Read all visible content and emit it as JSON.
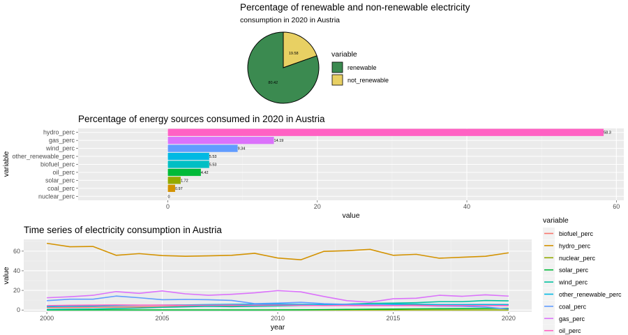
{
  "chart_data": [
    {
      "type": "pie",
      "title": "Percentage of renewable and non-renewable electricity",
      "subtitle": "consumption in 2020 in Austria",
      "legend_title": "variable",
      "legend_position": "right",
      "slices": [
        {
          "name": "renewable",
          "value": 80.42,
          "label": "80.42",
          "color": "#3b8a50"
        },
        {
          "name": "not_renewable",
          "value": 19.58,
          "label": "19.58",
          "color": "#e8d063"
        }
      ]
    },
    {
      "type": "bar",
      "orientation": "horizontal",
      "title": "Percentage of energy sources consumed in 2020 in Austria",
      "xlabel": "value",
      "ylabel": "variable",
      "xlim": [
        -12,
        61
      ],
      "xticks": [
        0,
        20,
        40,
        60
      ],
      "grid": true,
      "categories": [
        "hydro_perc",
        "gas_perc",
        "wind_perc",
        "other_renewable_perc",
        "biofuel_perc",
        "oil_perc",
        "solar_perc",
        "coal_perc",
        "nuclear_perc"
      ],
      "values": [
        58.3,
        14.19,
        9.34,
        5.53,
        5.53,
        4.42,
        1.72,
        0.97,
        0
      ],
      "labels": [
        "58.3",
        "14.19",
        "9.34",
        "5.53",
        "5.53",
        "4.42",
        "1.72",
        "0.97",
        "0"
      ],
      "colors": [
        "#ff61c3",
        "#db72fb",
        "#619cff",
        "#00b9e3",
        "#00bfc4",
        "#00ba38",
        "#93aa00",
        "#d39200",
        "#f8766d"
      ]
    },
    {
      "type": "line",
      "title": "Time series of electricity consumption in Austria",
      "xlabel": "year",
      "ylabel": "value",
      "xlim": [
        1999,
        2021
      ],
      "ylim": [
        -2,
        72
      ],
      "xticks": [
        2000,
        2005,
        2010,
        2015,
        2020
      ],
      "yticks": [
        0,
        20,
        40,
        60
      ],
      "grid": true,
      "legend_title": "variable",
      "legend_position": "right",
      "x": [
        2000,
        2001,
        2002,
        2003,
        2004,
        2005,
        2006,
        2007,
        2008,
        2009,
        2010,
        2011,
        2012,
        2013,
        2014,
        2015,
        2016,
        2017,
        2018,
        2019,
        2020
      ],
      "series": [
        {
          "name": "biofuel_perc",
          "color": "#f8766d",
          "values": [
            2.5,
            2.6,
            2.8,
            3.0,
            3.2,
            3.5,
            3.8,
            4.0,
            4.2,
            4.5,
            4.6,
            4.8,
            5.0,
            5.1,
            5.2,
            5.3,
            5.3,
            5.4,
            5.4,
            5.5,
            5.53
          ]
        },
        {
          "name": "hydro_perc",
          "color": "#d39200",
          "values": [
            68.0,
            64.5,
            64.8,
            55.8,
            57.5,
            55.5,
            54.8,
            55.2,
            55.8,
            57.8,
            53.0,
            51.2,
            59.8,
            60.5,
            61.8,
            55.8,
            56.8,
            52.8,
            53.8,
            54.8,
            58.3
          ]
        },
        {
          "name": "nuclear_perc",
          "color": "#93aa00",
          "values": [
            0,
            0,
            0,
            0,
            0,
            0,
            0,
            0,
            0,
            0,
            0,
            0,
            0,
            0,
            0,
            0,
            0,
            0,
            0,
            0,
            0
          ]
        },
        {
          "name": "solar_perc",
          "color": "#00ba38",
          "values": [
            0,
            0,
            0,
            0,
            0,
            0,
            0,
            0,
            0,
            0,
            0.1,
            0.2,
            0.4,
            0.6,
            0.8,
            1.0,
            1.2,
            1.3,
            1.4,
            1.6,
            1.72
          ]
        },
        {
          "name": "wind_perc",
          "color": "#00c19f",
          "values": [
            0.5,
            0.8,
            1.0,
            1.5,
            2.0,
            2.8,
            3.3,
            3.8,
            3.5,
            3.8,
            4.2,
            4.6,
            4.8,
            6.0,
            6.8,
            7.0,
            7.5,
            8.5,
            8.5,
            9.7,
            9.34
          ]
        },
        {
          "name": "other_renewable_perc",
          "color": "#00b9e3",
          "values": [
            3.5,
            3.8,
            4.0,
            4.5,
            4.8,
            5.0,
            5.2,
            5.5,
            5.8,
            6.0,
            6.0,
            5.8,
            5.5,
            5.8,
            5.5,
            6.0,
            6.0,
            5.5,
            5.5,
            5.6,
            5.53
          ]
        },
        {
          "name": "coal_perc",
          "color": "#619cff",
          "values": [
            9.5,
            11.0,
            11.0,
            14.2,
            12.5,
            10.5,
            10.8,
            10.5,
            9.8,
            6.5,
            7.0,
            7.8,
            6.5,
            5.8,
            5.5,
            5.0,
            4.5,
            4.0,
            3.8,
            3.0,
            0.97
          ]
        },
        {
          "name": "gas_perc",
          "color": "#db72fb",
          "values": [
            12.5,
            13.5,
            15.0,
            18.8,
            17.0,
            19.5,
            16.5,
            15.0,
            16.0,
            17.5,
            19.8,
            18.5,
            13.8,
            9.5,
            8.0,
            11.5,
            12.0,
            15.0,
            14.0,
            15.5,
            14.19
          ]
        },
        {
          "name": "oil_perc",
          "color": "#ff61c3",
          "values": [
            4.5,
            4.8,
            5.0,
            5.2,
            5.0,
            5.0,
            4.8,
            4.8,
            5.0,
            4.8,
            5.0,
            4.8,
            4.5,
            4.6,
            4.5,
            4.5,
            4.5,
            4.4,
            4.5,
            4.5,
            4.42
          ]
        }
      ]
    }
  ]
}
